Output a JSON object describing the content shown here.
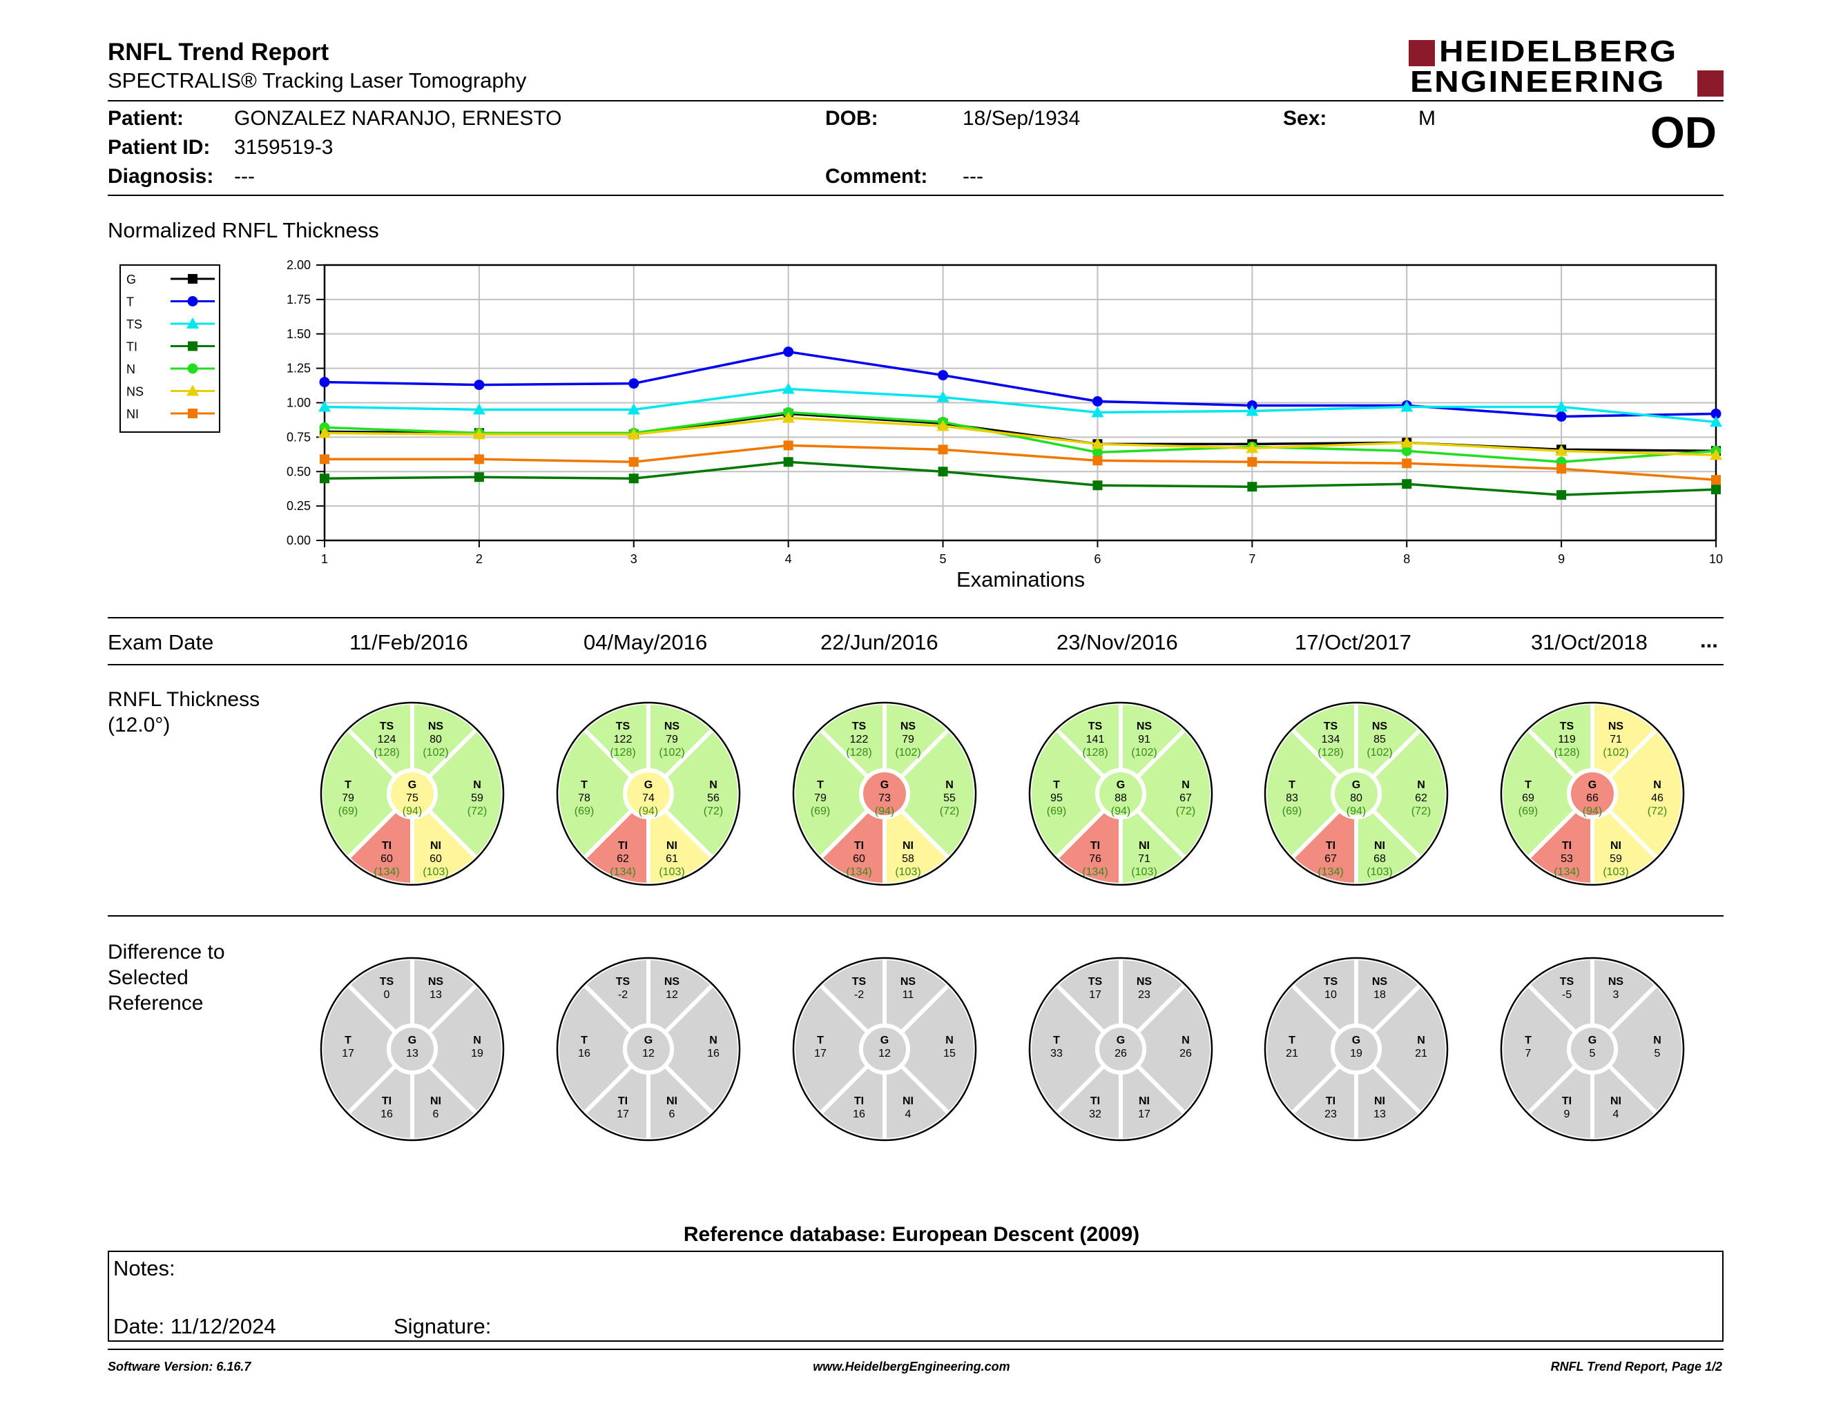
{
  "header": {
    "title": "RNFL Trend Report",
    "subtitle": "SPECTRALIS® Tracking Laser Tomography",
    "logo_line1": "HEIDELBERG",
    "logo_line2": "ENGINEERING",
    "eye": "OD",
    "logo_color": "#8b1a2b"
  },
  "patient": {
    "patient_label": "Patient:",
    "patient_value": "GONZALEZ NARANJO, ERNESTO",
    "id_label": "Patient ID:",
    "id_value": "3159519-3",
    "diagnosis_label": "Diagnosis:",
    "diagnosis_value": "---",
    "dob_label": "DOB:",
    "dob_value": "18/Sep/1934",
    "comment_label": "Comment:",
    "comment_value": "---",
    "sex_label": "Sex:",
    "sex_value": "M"
  },
  "chart_title": "Normalized RNFL Thickness",
  "chart_data": {
    "type": "line",
    "xlabel": "Examinations",
    "ylabel": "",
    "x": [
      1,
      2,
      3,
      4,
      5,
      6,
      7,
      8,
      9,
      10
    ],
    "ylim": [
      0,
      2
    ],
    "yticks": [
      "0.00",
      "0.25",
      "0.50",
      "0.75",
      "1.00",
      "1.25",
      "1.50",
      "1.75",
      "2.00"
    ],
    "grid": true,
    "legend_position": "left",
    "series": [
      {
        "name": "G",
        "color": "#000000",
        "marker": "square",
        "values": [
          0.79,
          0.78,
          0.77,
          0.92,
          0.85,
          0.7,
          0.7,
          0.71,
          0.66,
          0.65
        ]
      },
      {
        "name": "T",
        "color": "#0000ee",
        "marker": "circle",
        "values": [
          1.15,
          1.13,
          1.14,
          1.37,
          1.2,
          1.01,
          0.98,
          0.98,
          0.9,
          0.92
        ]
      },
      {
        "name": "TS",
        "color": "#00e5ee",
        "marker": "triangle",
        "values": [
          0.97,
          0.95,
          0.95,
          1.1,
          1.04,
          0.93,
          0.94,
          0.97,
          0.97,
          0.86
        ]
      },
      {
        "name": "TI",
        "color": "#007700",
        "marker": "square",
        "values": [
          0.45,
          0.46,
          0.45,
          0.57,
          0.5,
          0.4,
          0.39,
          0.41,
          0.33,
          0.37
        ]
      },
      {
        "name": "N",
        "color": "#22dd22",
        "marker": "circle",
        "values": [
          0.82,
          0.78,
          0.78,
          0.93,
          0.86,
          0.64,
          0.68,
          0.65,
          0.57,
          0.65
        ]
      },
      {
        "name": "NS",
        "color": "#e8d000",
        "marker": "triangle",
        "values": [
          0.78,
          0.77,
          0.77,
          0.89,
          0.83,
          0.7,
          0.67,
          0.71,
          0.65,
          0.62
        ]
      },
      {
        "name": "NI",
        "color": "#f07800",
        "marker": "square",
        "values": [
          0.59,
          0.59,
          0.57,
          0.69,
          0.66,
          0.58,
          0.57,
          0.56,
          0.52,
          0.44
        ]
      }
    ]
  },
  "exam_row": {
    "label": "Exam Date",
    "dates": [
      "11/Feb/2016",
      "04/May/2016",
      "22/Jun/2016",
      "23/Nov/2016",
      "17/Oct/2017",
      "31/Oct/2018"
    ],
    "more": "..."
  },
  "thickness": {
    "label_line1": "RNFL Thickness",
    "label_line2": "(12.0°)",
    "normals": {
      "TS": "(128)",
      "NS": "(102)",
      "T": "(69)",
      "G": "(94)",
      "N": "(72)",
      "TI": "(134)",
      "NI": "(103)"
    },
    "colors": {
      "green": "#c6f59c",
      "yellow": "#fff59a",
      "red": "#f28c80",
      "ref_text": "#3a8a1a"
    },
    "exams": [
      {
        "TS": {
          "v": "124",
          "c": "green"
        },
        "NS": {
          "v": "80",
          "c": "green"
        },
        "T": {
          "v": "79",
          "c": "green"
        },
        "G": {
          "v": "75",
          "c": "yellow"
        },
        "N": {
          "v": "59",
          "c": "green"
        },
        "TI": {
          "v": "60",
          "c": "red"
        },
        "NI": {
          "v": "60",
          "c": "yellow"
        }
      },
      {
        "TS": {
          "v": "122",
          "c": "green"
        },
        "NS": {
          "v": "79",
          "c": "green"
        },
        "T": {
          "v": "78",
          "c": "green"
        },
        "G": {
          "v": "74",
          "c": "yellow"
        },
        "N": {
          "v": "56",
          "c": "green"
        },
        "TI": {
          "v": "62",
          "c": "red"
        },
        "NI": {
          "v": "61",
          "c": "yellow"
        }
      },
      {
        "TS": {
          "v": "122",
          "c": "green"
        },
        "NS": {
          "v": "79",
          "c": "green"
        },
        "T": {
          "v": "79",
          "c": "green"
        },
        "G": {
          "v": "73",
          "c": "red"
        },
        "N": {
          "v": "55",
          "c": "green"
        },
        "TI": {
          "v": "60",
          "c": "red"
        },
        "NI": {
          "v": "58",
          "c": "yellow"
        }
      },
      {
        "TS": {
          "v": "141",
          "c": "green"
        },
        "NS": {
          "v": "91",
          "c": "green"
        },
        "T": {
          "v": "95",
          "c": "green"
        },
        "G": {
          "v": "88",
          "c": "green"
        },
        "N": {
          "v": "67",
          "c": "green"
        },
        "TI": {
          "v": "76",
          "c": "red"
        },
        "NI": {
          "v": "71",
          "c": "green"
        }
      },
      {
        "TS": {
          "v": "134",
          "c": "green"
        },
        "NS": {
          "v": "85",
          "c": "green"
        },
        "T": {
          "v": "83",
          "c": "green"
        },
        "G": {
          "v": "80",
          "c": "green"
        },
        "N": {
          "v": "62",
          "c": "green"
        },
        "TI": {
          "v": "67",
          "c": "red"
        },
        "NI": {
          "v": "68",
          "c": "green"
        }
      },
      {
        "TS": {
          "v": "119",
          "c": "green"
        },
        "NS": {
          "v": "71",
          "c": "yellow"
        },
        "T": {
          "v": "69",
          "c": "green"
        },
        "G": {
          "v": "66",
          "c": "red"
        },
        "N": {
          "v": "46",
          "c": "yellow"
        },
        "TI": {
          "v": "53",
          "c": "red"
        },
        "NI": {
          "v": "59",
          "c": "yellow"
        }
      }
    ]
  },
  "difference": {
    "label_line1": "Difference to",
    "label_line2": "Selected",
    "label_line3": "Reference",
    "color": "#d3d3d3",
    "exams": [
      {
        "TS": "0",
        "NS": "13",
        "T": "17",
        "G": "13",
        "N": "19",
        "TI": "16",
        "NI": "6"
      },
      {
        "TS": "-2",
        "NS": "12",
        "T": "16",
        "G": "12",
        "N": "16",
        "TI": "17",
        "NI": "6"
      },
      {
        "TS": "-2",
        "NS": "11",
        "T": "17",
        "G": "12",
        "N": "15",
        "TI": "16",
        "NI": "4"
      },
      {
        "TS": "17",
        "NS": "23",
        "T": "33",
        "G": "26",
        "N": "26",
        "TI": "32",
        "NI": "17"
      },
      {
        "TS": "10",
        "NS": "18",
        "T": "21",
        "G": "19",
        "N": "21",
        "TI": "23",
        "NI": "13"
      },
      {
        "TS": "-5",
        "NS": "3",
        "T": "7",
        "G": "5",
        "N": "5",
        "TI": "9",
        "NI": "4"
      }
    ]
  },
  "reference_db": "Reference database: European Descent (2009)",
  "notes": {
    "notes_label": "Notes:",
    "date_label": "Date: 11/12/2024",
    "signature_label": "Signature:"
  },
  "footer": {
    "software": "Software Version: 6.16.7",
    "website": "www.HeidelbergEngineering.com",
    "page": "RNFL Trend Report, Page 1/2"
  }
}
